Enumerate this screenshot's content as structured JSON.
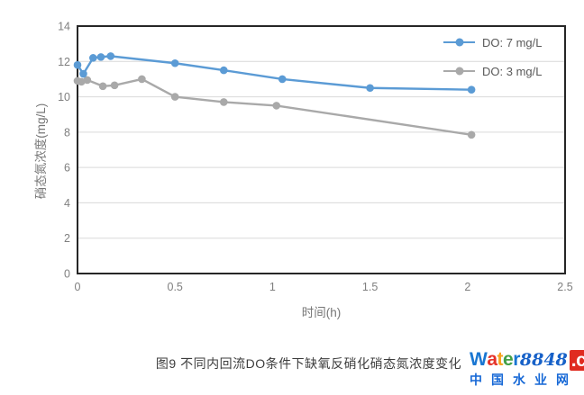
{
  "chart_data": {
    "type": "line",
    "title": "",
    "xlabel": "时间(h)",
    "ylabel": "硝态氮浓度(mg/L)",
    "xlim": [
      0,
      2.5
    ],
    "ylim": [
      0,
      14
    ],
    "xticks": [
      0,
      0.5,
      1,
      1.5,
      2,
      2.5
    ],
    "xtick_labels": [
      "0",
      "0.5",
      "1",
      "1.5",
      "2",
      "2.5"
    ],
    "yticks": [
      0,
      2,
      4,
      6,
      8,
      10,
      12,
      14
    ],
    "grid": "horizontal",
    "legend_position": "top-right-inside",
    "colors": {
      "grid": "#d9d9d9",
      "border": "#262626",
      "tick": "#7f7f7f"
    },
    "series": [
      {
        "name": "DO: 7 mg/L",
        "color": "#5b9bd5",
        "x": [
          0,
          0.03,
          0.08,
          0.12,
          0.17,
          0.5,
          0.75,
          1.05,
          1.5,
          2.02
        ],
        "y": [
          11.8,
          11.3,
          12.2,
          12.25,
          12.3,
          11.9,
          11.5,
          11.0,
          10.5,
          10.4
        ]
      },
      {
        "name": "DO: 3 mg/L",
        "color": "#a9a9a9",
        "x": [
          0,
          0.02,
          0.05,
          0.13,
          0.19,
          0.33,
          0.5,
          0.75,
          1.02,
          2.02
        ],
        "y": [
          10.9,
          10.85,
          10.95,
          10.6,
          10.65,
          11.0,
          10.0,
          9.7,
          9.5,
          7.85
        ]
      }
    ]
  },
  "caption": "图9 不同内回流DO条件下缺氧反硝化硝态氮浓度变化",
  "logo": {
    "word_segments": [
      {
        "text": "W",
        "color": "#1976d2"
      },
      {
        "text": "a",
        "color": "#e53228"
      },
      {
        "text": "t",
        "color": "#f6a21d"
      },
      {
        "text": "e",
        "color": "#43a047"
      },
      {
        "text": "r",
        "color": "#1976d2"
      },
      {
        "text": "8848",
        "color": "#1761c8",
        "style": "numbers"
      }
    ],
    "tld": ".com",
    "tagline": "中国水业网",
    "tagline_color": "#1668d6"
  }
}
